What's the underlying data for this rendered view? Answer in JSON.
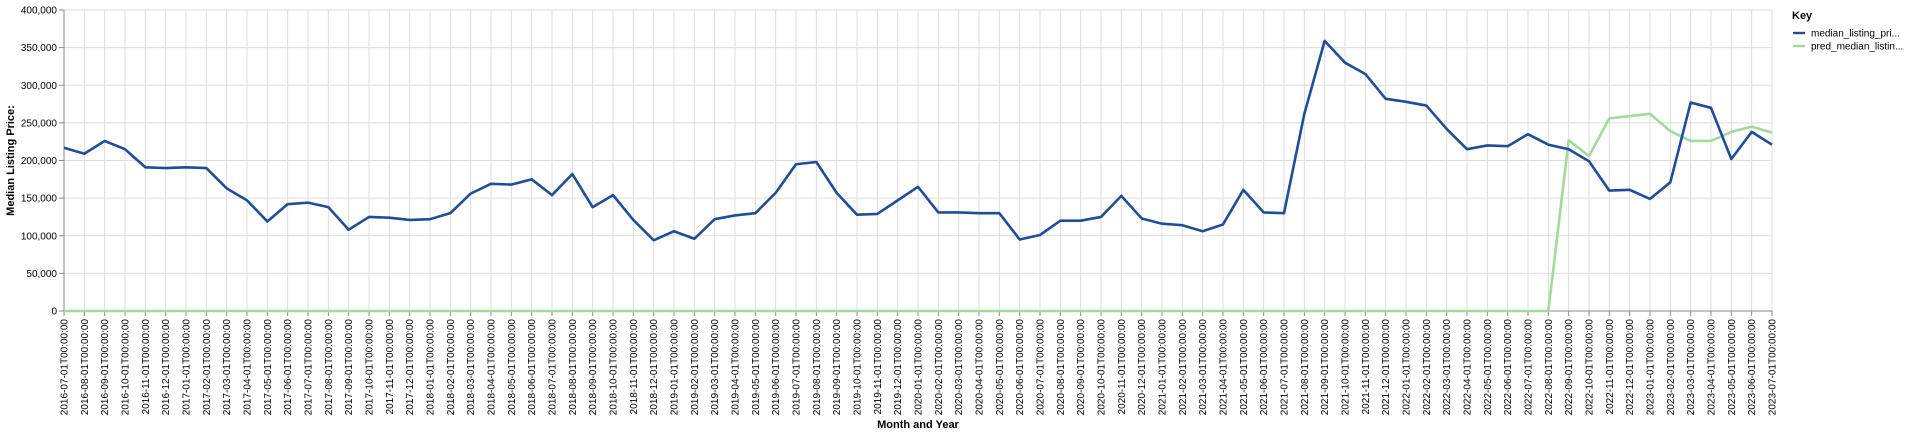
{
  "chart_data": {
    "type": "line",
    "xlabel": "Month and Year",
    "ylabel": "Median Listing Price:",
    "ylim": [
      0,
      400000
    ],
    "yticks": [
      "0",
      "50,000",
      "100,000",
      "150,000",
      "200,000",
      "250,000",
      "300,000",
      "350,000",
      "400,000"
    ],
    "grid": true,
    "legend": {
      "title": "Key",
      "placement": "top-right"
    },
    "x": [
      "2016-07-01T00:00:00",
      "2016-08-01T00:00:00",
      "2016-09-01T00:00:00",
      "2016-10-01T00:00:00",
      "2016-11-01T00:00:00",
      "2016-12-01T00:00:00",
      "2017-01-01T00:00:00",
      "2017-02-01T00:00:00",
      "2017-03-01T00:00:00",
      "2017-04-01T00:00:00",
      "2017-05-01T00:00:00",
      "2017-06-01T00:00:00",
      "2017-07-01T00:00:00",
      "2017-08-01T00:00:00",
      "2017-09-01T00:00:00",
      "2017-10-01T00:00:00",
      "2017-11-01T00:00:00",
      "2017-12-01T00:00:00",
      "2018-01-01T00:00:00",
      "2018-02-01T00:00:00",
      "2018-03-01T00:00:00",
      "2018-04-01T00:00:00",
      "2018-05-01T00:00:00",
      "2018-06-01T00:00:00",
      "2018-07-01T00:00:00",
      "2018-08-01T00:00:00",
      "2018-09-01T00:00:00",
      "2018-10-01T00:00:00",
      "2018-11-01T00:00:00",
      "2018-12-01T00:00:00",
      "2019-01-01T00:00:00",
      "2019-02-01T00:00:00",
      "2019-03-01T00:00:00",
      "2019-04-01T00:00:00",
      "2019-05-01T00:00:00",
      "2019-06-01T00:00:00",
      "2019-07-01T00:00:00",
      "2019-08-01T00:00:00",
      "2019-09-01T00:00:00",
      "2019-10-01T00:00:00",
      "2019-11-01T00:00:00",
      "2019-12-01T00:00:00",
      "2020-01-01T00:00:00",
      "2020-02-01T00:00:00",
      "2020-03-01T00:00:00",
      "2020-04-01T00:00:00",
      "2020-05-01T00:00:00",
      "2020-06-01T00:00:00",
      "2020-07-01T00:00:00",
      "2020-08-01T00:00:00",
      "2020-09-01T00:00:00",
      "2020-10-01T00:00:00",
      "2020-11-01T00:00:00",
      "2020-12-01T00:00:00",
      "2021-01-01T00:00:00",
      "2021-02-01T00:00:00",
      "2021-03-01T00:00:00",
      "2021-04-01T00:00:00",
      "2021-05-01T00:00:00",
      "2021-06-01T00:00:00",
      "2021-07-01T00:00:00",
      "2021-08-01T00:00:00",
      "2021-09-01T00:00:00",
      "2021-10-01T00:00:00",
      "2021-11-01T00:00:00",
      "2021-12-01T00:00:00",
      "2022-01-01T00:00:00",
      "2022-02-01T00:00:00",
      "2022-03-01T00:00:00",
      "2022-04-01T00:00:00",
      "2022-05-01T00:00:00",
      "2022-06-01T00:00:00",
      "2022-07-01T00:00:00",
      "2022-08-01T00:00:00",
      "2022-09-01T00:00:00",
      "2022-10-01T00:00:00",
      "2022-11-01T00:00:00",
      "2022-12-01T00:00:00",
      "2023-01-01T00:00:00",
      "2023-02-01T00:00:00",
      "2023-03-01T00:00:00",
      "2023-04-01T00:00:00",
      "2023-05-01T00:00:00",
      "2023-06-01T00:00:00",
      "2023-07-01T00:00:00"
    ],
    "series": [
      {
        "name": "median_listing_pri...",
        "color": "#1f4e97",
        "values": [
          217000,
          209000,
          226000,
          215000,
          191000,
          190000,
          191000,
          190000,
          163000,
          147000,
          119000,
          142000,
          144000,
          138000,
          108000,
          125000,
          124000,
          121000,
          122000,
          130000,
          156000,
          169000,
          168000,
          175000,
          154000,
          182000,
          138000,
          154000,
          121000,
          94000,
          106000,
          96000,
          122000,
          127000,
          130000,
          157000,
          195000,
          198000,
          157000,
          128000,
          129000,
          147000,
          165000,
          131000,
          131000,
          130000,
          130000,
          95000,
          101000,
          120000,
          120000,
          125000,
          153000,
          123000,
          116000,
          114000,
          106000,
          115000,
          161000,
          131000,
          130000,
          262000,
          359000,
          330000,
          315000,
          282000,
          278000,
          273000,
          242000,
          215000,
          220000,
          219000,
          235000,
          221000,
          215000,
          199000,
          160000,
          161000,
          149000,
          171000,
          277000,
          270000,
          202000,
          238000,
          221000
        ]
      },
      {
        "name": "pred_median_listin...",
        "color": "#a3d99d",
        "values": [
          0,
          0,
          0,
          0,
          0,
          0,
          0,
          0,
          0,
          0,
          0,
          0,
          0,
          0,
          0,
          0,
          0,
          0,
          0,
          0,
          0,
          0,
          0,
          0,
          0,
          0,
          0,
          0,
          0,
          0,
          0,
          0,
          0,
          0,
          0,
          0,
          0,
          0,
          0,
          0,
          0,
          0,
          0,
          0,
          0,
          0,
          0,
          0,
          0,
          0,
          0,
          0,
          0,
          0,
          0,
          0,
          0,
          0,
          0,
          0,
          0,
          0,
          0,
          0,
          0,
          0,
          0,
          0,
          0,
          0,
          0,
          0,
          0,
          0,
          227000,
          206000,
          256000,
          259000,
          262000,
          239000,
          226000,
          226000,
          238000,
          245000,
          237000
        ]
      }
    ]
  }
}
